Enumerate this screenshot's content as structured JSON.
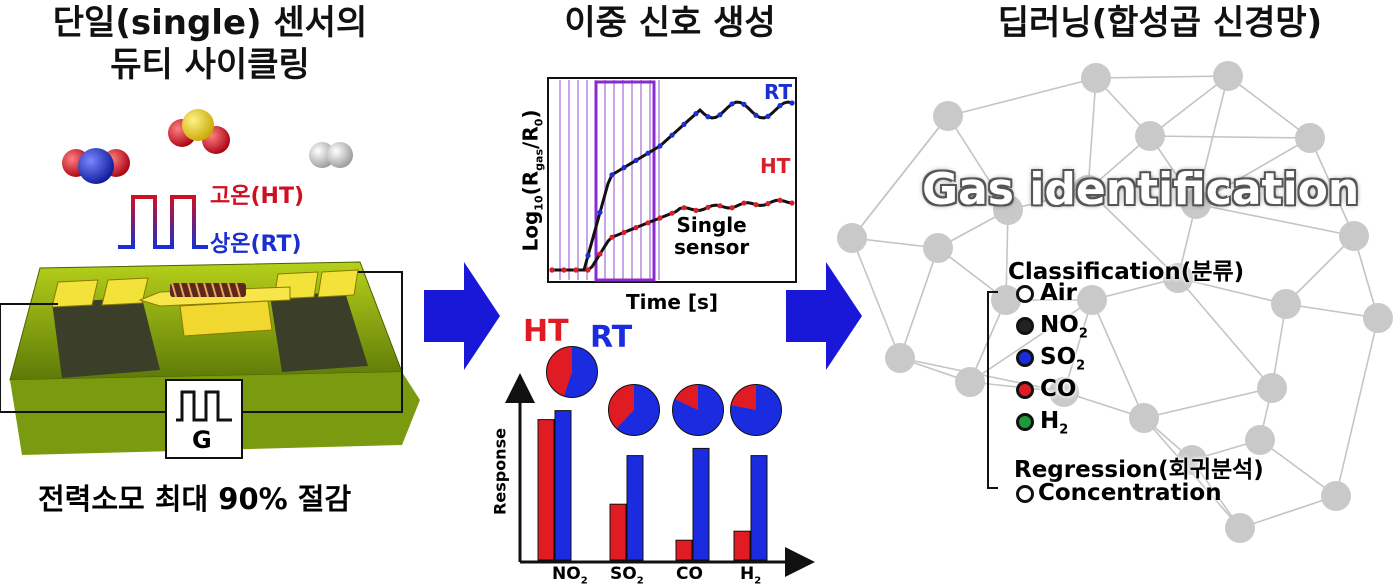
{
  "left": {
    "title_line1": "단일(single) 센서의",
    "title_line2": "듀티 사이클링",
    "high_temp_label": "고온(HT)",
    "room_temp_label": "상온(RT)",
    "generator_label": "G",
    "caption": "전력소모 최대 90% 절감"
  },
  "middle": {
    "title": "이중 신호 생성",
    "plot": {
      "ylabel": "Log",
      "ylabel_sub1": "10",
      "ylabel_mid": "(R",
      "ylabel_sub2": "gas",
      "ylabel_mid2": "/R",
      "ylabel_sub3": "0",
      "ylabel_end": ")",
      "xlabel": "Time [s]",
      "rt_label": "RT",
      "ht_label": "HT",
      "note_line1": "Single",
      "note_line2": "sensor",
      "colors": {
        "rt": "#1c2fd0",
        "ht": "#d8202a",
        "window": "#8a2bd0"
      }
    },
    "ht_label": "HT",
    "rt_label": "RT",
    "bar_ylabel": "Response",
    "chart_data": {
      "type": "bar",
      "categories": [
        "NO",
        "SO",
        "CO",
        "H"
      ],
      "category_subscripts": [
        "2",
        "2",
        "",
        "2"
      ],
      "series": [
        {
          "name": "HT",
          "values": [
            0.78,
            0.31,
            0.11,
            0.16
          ],
          "color": "#e01b24"
        },
        {
          "name": "RT",
          "values": [
            0.83,
            0.58,
            0.62,
            0.58
          ],
          "color": "#1a2be0"
        }
      ],
      "pie_ht_fraction": [
        0.45,
        0.38,
        0.18,
        0.22
      ],
      "ylim": [
        0,
        1
      ],
      "xlabel": "",
      "ylabel": "Response"
    }
  },
  "right": {
    "title": "딥러닝(합성곱 신경망)",
    "headline": "Gas identification",
    "classification": "Classification(분류)",
    "classes": [
      {
        "name": "Air",
        "sub": "",
        "color": "#ffffff"
      },
      {
        "name": "NO",
        "sub": "2",
        "color": "#222222"
      },
      {
        "name": "SO",
        "sub": "2",
        "color": "#1a2be0"
      },
      {
        "name": "CO",
        "sub": "",
        "color": "#e01b24"
      },
      {
        "name": "H",
        "sub": "2",
        "color": "#1e9a3a"
      }
    ],
    "regression": "Regression(회귀분석)",
    "regression_item": "Concentration"
  }
}
